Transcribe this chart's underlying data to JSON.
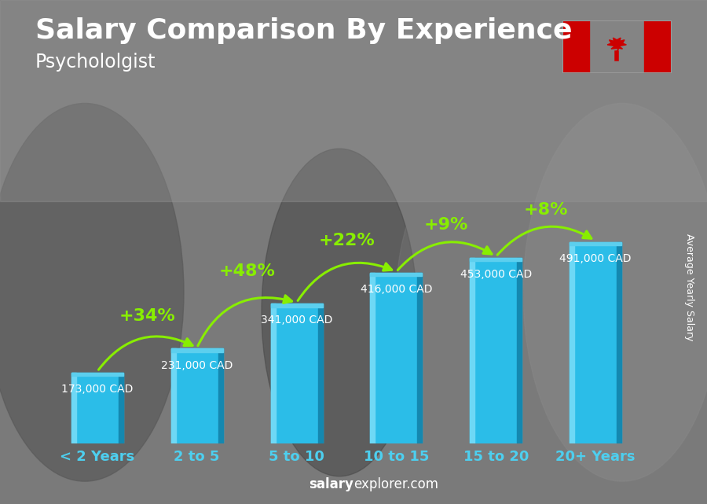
{
  "title": "Salary Comparison By Experience",
  "subtitle": "Psychololgist",
  "categories": [
    "< 2 Years",
    "2 to 5",
    "5 to 10",
    "10 to 15",
    "15 to 20",
    "20+ Years"
  ],
  "values": [
    173000,
    231000,
    341000,
    416000,
    453000,
    491000
  ],
  "salary_labels": [
    "173,000 CAD",
    "231,000 CAD",
    "341,000 CAD",
    "416,000 CAD",
    "453,000 CAD",
    "491,000 CAD"
  ],
  "pct_changes": [
    "+34%",
    "+48%",
    "+22%",
    "+9%",
    "+8%"
  ],
  "bar_color_main": "#2BBDE8",
  "bar_color_left": "#6ED8F5",
  "bar_color_right": "#1488B0",
  "bar_color_top": "#5CCFEE",
  "bg_color": "#7a7a7a",
  "text_color_white": "#ffffff",
  "text_color_green": "#88ee00",
  "xtick_color": "#4DCFEF",
  "ylabel": "Average Yearly Salary",
  "footer_bold": "salary",
  "footer_normal": "explorer.com",
  "title_fontsize": 26,
  "subtitle_fontsize": 17,
  "label_fontsize": 10,
  "pct_fontsize": 16,
  "xtick_fontsize": 13,
  "ylabel_fontsize": 9,
  "footer_fontsize": 12,
  "bar_width": 0.52,
  "ylim_factor": 1.55
}
